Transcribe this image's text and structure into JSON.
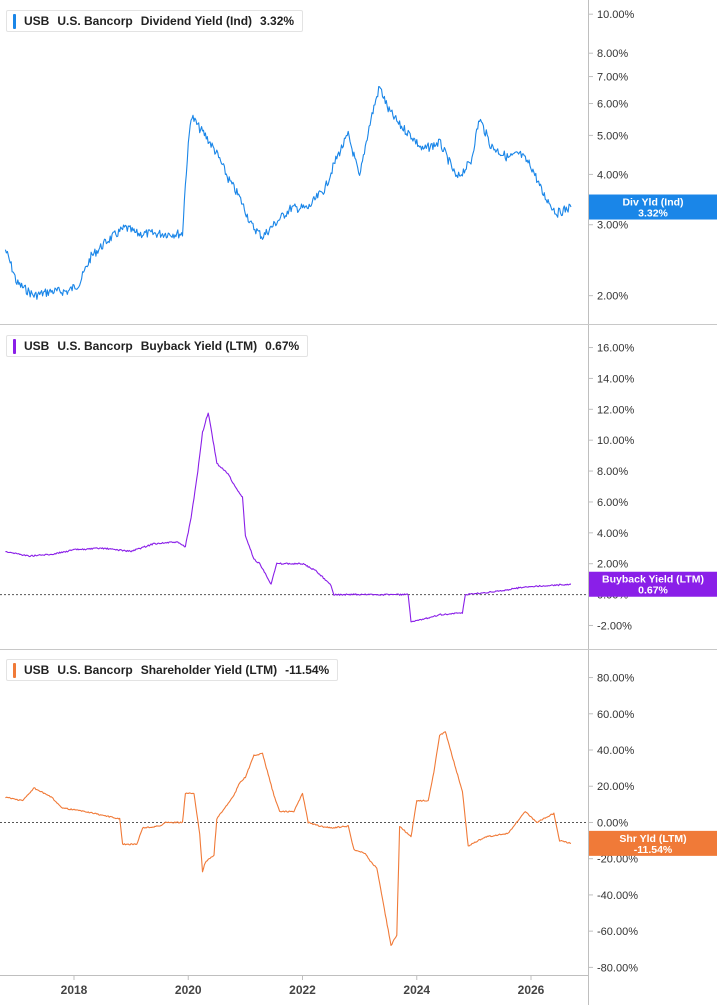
{
  "x_axis": {
    "ticks": [
      "2018",
      "2020",
      "2022",
      "2024",
      "2026"
    ]
  },
  "chart_data": [
    {
      "type": "line",
      "legend": {
        "ticker": "USB",
        "company": "U.S. Bancorp",
        "metric": "Dividend Yield (Ind)",
        "value": "3.32%"
      },
      "color": "#1a86e8",
      "scale": "log",
      "y_ticks": [
        "10.00%",
        "8.00%",
        "7.00%",
        "6.00%",
        "5.00%",
        "4.00%",
        "3.00%",
        "2.00%"
      ],
      "y_tick_values": [
        10,
        8,
        7,
        6,
        5,
        4,
        3,
        2
      ],
      "ylim": [
        1.75,
        10.6
      ],
      "zero_line": false,
      "badge": {
        "label": "Div Yld (Ind)",
        "value": "3.32%"
      },
      "x": [
        2016.8,
        2017.0,
        2017.3,
        2017.6,
        2017.9,
        2018.1,
        2018.3,
        2018.6,
        2018.9,
        2019.1,
        2019.4,
        2019.7,
        2019.9,
        2020.05,
        2020.2,
        2020.3,
        2020.5,
        2020.7,
        2020.9,
        2021.1,
        2021.3,
        2021.5,
        2021.8,
        2022.1,
        2022.4,
        2022.6,
        2022.8,
        2023.0,
        2023.2,
        2023.35,
        2023.5,
        2023.7,
        2023.9,
        2024.1,
        2024.4,
        2024.7,
        2024.95,
        2025.1,
        2025.3,
        2025.6,
        2025.8,
        2026.0,
        2026.2,
        2026.45,
        2026.7
      ],
      "y": [
        2.6,
        2.15,
        2.0,
        2.05,
        2.05,
        2.15,
        2.5,
        2.75,
        2.95,
        2.85,
        2.85,
        2.85,
        2.85,
        5.6,
        5.2,
        5.0,
        4.5,
        3.9,
        3.5,
        3.0,
        2.8,
        3.0,
        3.3,
        3.3,
        3.7,
        4.4,
        5.0,
        3.9,
        5.5,
        6.6,
        5.8,
        5.3,
        5.0,
        4.6,
        4.8,
        3.9,
        4.3,
        5.5,
        4.7,
        4.4,
        4.5,
        4.2,
        3.6,
        3.2,
        3.32
      ]
    },
    {
      "type": "line",
      "legend": {
        "ticker": "USB",
        "company": "U.S. Bancorp",
        "metric": "Buyback Yield (LTM)",
        "value": "0.67%"
      },
      "color": "#8a1fe8",
      "scale": "linear",
      "y_ticks": [
        "16.00%",
        "14.00%",
        "12.00%",
        "10.00%",
        "8.00%",
        "6.00%",
        "4.00%",
        "2.00%",
        "0.00%",
        "-2.00%"
      ],
      "y_tick_values": [
        16,
        14,
        12,
        10,
        8,
        6,
        4,
        2,
        0,
        -2
      ],
      "ylim": [
        -3.2,
        17.2
      ],
      "zero_line": true,
      "badge": {
        "label": "Buyback Yield (LTM)",
        "value": "0.67%"
      },
      "x": [
        2016.8,
        2017.2,
        2017.6,
        2018.0,
        2018.5,
        2019.0,
        2019.4,
        2019.8,
        2019.95,
        2020.05,
        2020.15,
        2020.25,
        2020.35,
        2020.5,
        2020.7,
        2020.85,
        2020.95,
        2021.0,
        2021.15,
        2021.25,
        2021.45,
        2021.55,
        2022.0,
        2022.25,
        2022.5,
        2022.55,
        2023.0,
        2023.5,
        2023.85,
        2023.9,
        2024.2,
        2024.4,
        2024.8,
        2024.85,
        2025.4,
        2025.9,
        2026.4,
        2026.7
      ],
      "y": [
        2.8,
        2.5,
        2.6,
        2.9,
        3.0,
        2.8,
        3.3,
        3.4,
        3.1,
        5.0,
        7.5,
        10.5,
        11.8,
        8.5,
        7.8,
        6.8,
        6.3,
        3.8,
        2.3,
        2.0,
        0.7,
        2.0,
        2.0,
        1.5,
        0.6,
        0.0,
        0.0,
        0.0,
        0.0,
        -1.8,
        -1.5,
        -1.3,
        -1.2,
        0.0,
        0.2,
        0.5,
        0.6,
        0.67
      ]
    },
    {
      "type": "line",
      "legend": {
        "ticker": "USB",
        "company": "U.S. Bancorp",
        "metric": "Shareholder Yield (LTM)",
        "value": "-11.54%"
      },
      "color": "#f07a38",
      "scale": "linear",
      "y_ticks": [
        "80.00%",
        "60.00%",
        "40.00%",
        "20.00%",
        "0.00%",
        "-20.00%",
        "-40.00%",
        "-60.00%",
        "-80.00%"
      ],
      "y_tick_values": [
        80,
        60,
        40,
        20,
        0,
        -20,
        -40,
        -60,
        -80
      ],
      "ylim": [
        -82,
        93
      ],
      "zero_line": true,
      "badge": {
        "label": "Shr Yld (LTM)",
        "value": "-11.54%"
      },
      "x": [
        2016.8,
        2017.1,
        2017.3,
        2017.6,
        2017.8,
        2018.2,
        2018.8,
        2018.85,
        2019.1,
        2019.2,
        2019.5,
        2019.6,
        2019.9,
        2019.95,
        2020.1,
        2020.2,
        2020.25,
        2020.3,
        2020.45,
        2020.5,
        2020.8,
        2020.9,
        2021.0,
        2021.15,
        2021.3,
        2021.5,
        2021.6,
        2021.85,
        2022.0,
        2022.1,
        2022.3,
        2022.5,
        2022.8,
        2022.9,
        2023.1,
        2023.2,
        2023.3,
        2023.55,
        2023.65,
        2023.7,
        2023.9,
        2024.0,
        2024.2,
        2024.3,
        2024.4,
        2024.5,
        2024.8,
        2024.9,
        2025.2,
        2025.6,
        2025.9,
        2026.1,
        2026.4,
        2026.5,
        2026.7
      ],
      "y": [
        14,
        12,
        19,
        14,
        8,
        6,
        2,
        -12,
        -12,
        -3,
        -2,
        0,
        0,
        16,
        16,
        -6,
        -27,
        -22,
        -18,
        2,
        15,
        22,
        25,
        37,
        38,
        15,
        6,
        6,
        16,
        0,
        -2,
        -3,
        -2,
        -15,
        -17,
        -22,
        -25,
        -68,
        -62,
        -2,
        -8,
        12,
        12,
        28,
        48,
        50,
        17,
        -13,
        -8,
        -6,
        6,
        0,
        5,
        -10,
        -11.54
      ]
    }
  ]
}
